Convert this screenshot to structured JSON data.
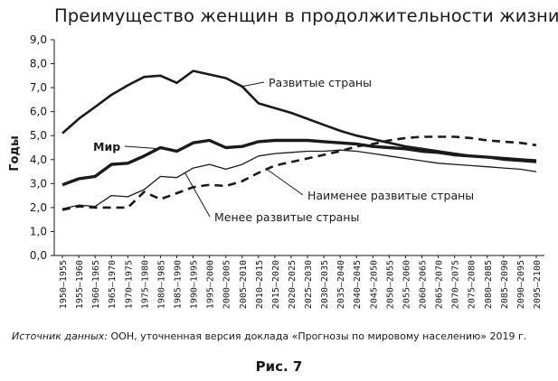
{
  "chart_data": {
    "type": "line",
    "title": "Преимущество женщин в продолжительности жизни",
    "xlabel": "",
    "ylabel": "Годы",
    "ylim": [
      0,
      9
    ],
    "yticks": [
      0,
      1,
      2,
      3,
      4,
      5,
      6,
      7,
      8,
      9
    ],
    "ytick_labels": [
      "0,0",
      "1,0",
      "2,0",
      "3,0",
      "4,0",
      "5,0",
      "6,0",
      "7,0",
      "8,0",
      "9,0"
    ],
    "grid": false,
    "x": [
      "1950–1955",
      "1955–1960",
      "1960–1965",
      "1965–1970",
      "1970–1975",
      "1975–1980",
      "1980–1985",
      "1985–1990",
      "1990–1995",
      "1995–2000",
      "2000–2005",
      "2005–2010",
      "2010–2015",
      "2015–2020",
      "2020–2025",
      "2025–2030",
      "2030–2035",
      "2035–2040",
      "2040–2045",
      "2045–2050",
      "2050–2055",
      "2055–2060",
      "2060–2065",
      "2065–2070",
      "2070–2075",
      "2075–2080",
      "2080–2085",
      "2085–2090",
      "2090–2095",
      "2095–2100"
    ],
    "series": [
      {
        "name": "Развитые страны",
        "style": "solid",
        "values": [
          5.1,
          5.7,
          6.2,
          6.7,
          7.1,
          7.45,
          7.5,
          7.2,
          7.7,
          7.55,
          7.4,
          7.05,
          6.35,
          6.15,
          5.95,
          5.7,
          5.45,
          5.2,
          5.0,
          4.85,
          4.7,
          4.55,
          4.45,
          4.35,
          4.25,
          4.15,
          4.1,
          4.0,
          3.95,
          3.9
        ]
      },
      {
        "name": "Мир",
        "style": "bold",
        "values": [
          2.95,
          3.2,
          3.3,
          3.8,
          3.85,
          4.15,
          4.5,
          4.35,
          4.7,
          4.8,
          4.5,
          4.55,
          4.75,
          4.8,
          4.8,
          4.8,
          4.75,
          4.7,
          4.65,
          4.55,
          4.5,
          4.45,
          4.35,
          4.3,
          4.2,
          4.15,
          4.1,
          4.05,
          4.0,
          3.95
        ]
      },
      {
        "name": "Наименее развитые страны",
        "style": "dashed",
        "values": [
          1.9,
          2.05,
          2.0,
          2.0,
          2.0,
          2.65,
          2.35,
          2.6,
          2.85,
          2.95,
          2.9,
          3.1,
          3.45,
          3.75,
          3.9,
          4.05,
          4.2,
          4.35,
          4.55,
          4.65,
          4.8,
          4.9,
          4.95,
          4.95,
          4.95,
          4.9,
          4.8,
          4.75,
          4.7,
          4.6
        ]
      },
      {
        "name": "Менее развитые страны",
        "style": "thin",
        "values": [
          1.95,
          2.1,
          2.05,
          2.5,
          2.45,
          2.75,
          3.3,
          3.25,
          3.65,
          3.8,
          3.6,
          3.8,
          4.15,
          4.25,
          4.3,
          4.35,
          4.35,
          4.4,
          4.35,
          4.25,
          4.15,
          4.05,
          3.95,
          3.85,
          3.8,
          3.75,
          3.7,
          3.65,
          3.6,
          3.5
        ]
      }
    ]
  },
  "source_note": {
    "label": "Источник данных:",
    "text": " ООН, уточненная версия доклада «Прогнозы по мировому населению» 2019 г."
  },
  "figure_caption": "Рис. 7"
}
